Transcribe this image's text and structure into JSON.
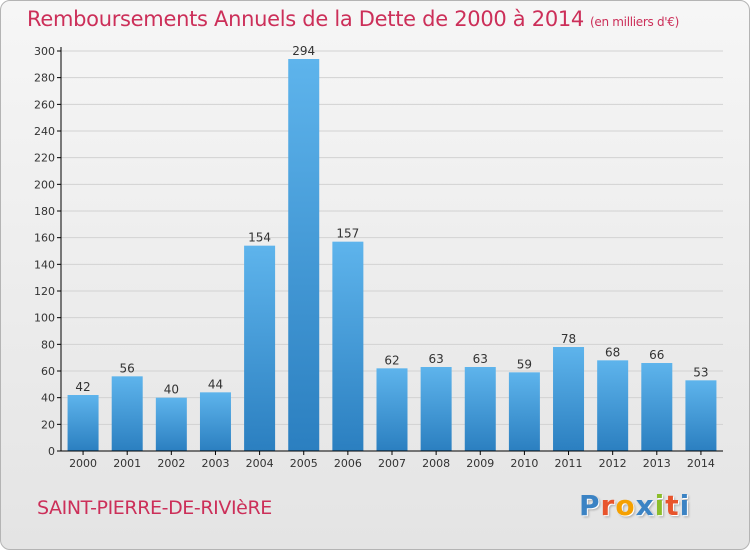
{
  "header": {
    "title": "Remboursements Annuels de la Dette de 2000 à 2014",
    "unit": "(en milliers d'€)"
  },
  "footer": {
    "commune": "SAINT-PIERRE-DE-RIVIèRE",
    "logo": "Proxiti",
    "logo_letter_colors": [
      "#3b83c4",
      "#e8542c",
      "#f5a000",
      "#3b83c4",
      "#8bbd2a",
      "#e8542c",
      "#3b83c4"
    ]
  },
  "colors": {
    "bar_top": "#5eb4ec",
    "bar_bottom": "#2b7fc0",
    "title": "#cc2f59",
    "grid": "#d2d2d2",
    "axis": "#000000"
  },
  "chart_data": {
    "type": "bar",
    "title": "Remboursements Annuels de la Dette de 2000 à 2014",
    "subtitle": "(en milliers d'€)",
    "xlabel": "",
    "ylabel": "",
    "categories": [
      "2000",
      "2001",
      "2002",
      "2003",
      "2004",
      "2005",
      "2006",
      "2007",
      "2008",
      "2009",
      "2010",
      "2011",
      "2012",
      "2013",
      "2014"
    ],
    "values": [
      42,
      56,
      40,
      44,
      154,
      294,
      157,
      62,
      63,
      63,
      59,
      78,
      68,
      66,
      53
    ],
    "ylim": [
      0,
      300
    ],
    "yticks": [
      0,
      20,
      40,
      60,
      80,
      100,
      120,
      140,
      160,
      180,
      200,
      220,
      240,
      260,
      280,
      300
    ],
    "grid": true,
    "data_labels": true
  }
}
